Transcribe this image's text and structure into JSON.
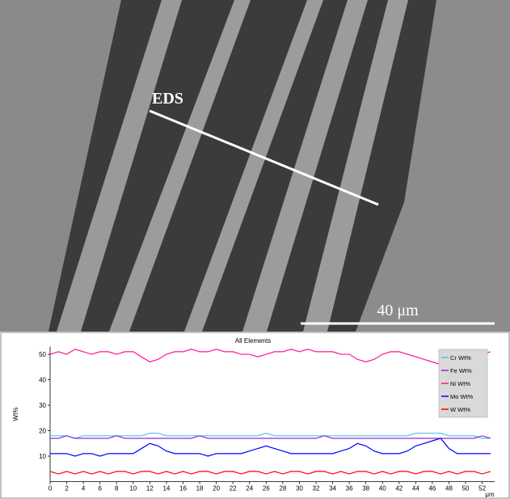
{
  "image": {
    "line_label": "EDS",
    "scale_bar": "40 μm"
  },
  "chart_data": {
    "type": "line",
    "title": "All Elements",
    "y_label": "Wt%",
    "x_label": "μm",
    "x": [
      0,
      1,
      2,
      3,
      4,
      5,
      6,
      7,
      8,
      9,
      10,
      11,
      12,
      13,
      14,
      15,
      16,
      17,
      18,
      19,
      20,
      21,
      22,
      23,
      24,
      25,
      26,
      27,
      28,
      29,
      30,
      31,
      32,
      33,
      34,
      35,
      36,
      37,
      38,
      39,
      40,
      41,
      42,
      43,
      44,
      45,
      46,
      47,
      48,
      49,
      50,
      51,
      52,
      53
    ],
    "xlim": [
      0,
      53.5
    ],
    "xticks": [
      0,
      2,
      4,
      6,
      8,
      10,
      12,
      14,
      16,
      18,
      20,
      22,
      24,
      26,
      28,
      30,
      32,
      34,
      36,
      38,
      40,
      42,
      44,
      46,
      48,
      50,
      52
    ],
    "ylim": [
      0,
      53
    ],
    "yticks": [
      10,
      20,
      30,
      40,
      50
    ],
    "legend": "upper right",
    "series": [
      {
        "name": "Cr Wt%",
        "color": "#4fc3e8",
        "values": [
          18,
          18,
          18,
          17,
          18,
          18,
          18,
          18,
          18,
          18,
          18,
          18,
          19,
          19,
          18,
          18,
          18,
          18,
          18,
          18,
          18,
          18,
          18,
          18,
          18,
          18,
          19,
          18,
          18,
          18,
          18,
          18,
          18,
          18,
          18,
          18,
          18,
          18,
          18,
          18,
          18,
          18,
          18,
          18,
          19,
          19,
          19,
          19,
          18,
          18,
          18,
          18,
          17,
          17
        ]
      },
      {
        "name": "Fe Wt%",
        "color": "#8a2be2",
        "values": [
          17,
          17,
          18,
          17,
          17,
          17,
          17,
          17,
          18,
          17,
          17,
          17,
          17,
          17,
          17,
          17,
          17,
          17,
          18,
          17,
          17,
          17,
          17,
          17,
          17,
          17,
          17,
          17,
          17,
          17,
          17,
          17,
          17,
          18,
          17,
          17,
          17,
          17,
          17,
          17,
          17,
          17,
          17,
          17,
          17,
          17,
          17,
          17,
          17,
          17,
          17,
          17,
          18,
          17
        ]
      },
      {
        "name": "Ni Wt%",
        "color": "#ff1493",
        "values": [
          50,
          51,
          50,
          52,
          51,
          50,
          51,
          51,
          50,
          51,
          51,
          49,
          47,
          48,
          50,
          51,
          51,
          52,
          51,
          51,
          52,
          51,
          51,
          50,
          50,
          49,
          50,
          51,
          51,
          52,
          51,
          52,
          51,
          51,
          51,
          50,
          50,
          48,
          47,
          48,
          50,
          51,
          51,
          50,
          49,
          48,
          47,
          46,
          47,
          49,
          50,
          51,
          50,
          51
        ]
      },
      {
        "name": "Mo Wt%",
        "color": "#0000ff",
        "values": [
          11,
          11,
          11,
          10,
          11,
          11,
          10,
          11,
          11,
          11,
          11,
          13,
          15,
          14,
          12,
          11,
          11,
          11,
          11,
          10,
          11,
          11,
          11,
          11,
          12,
          13,
          14,
          13,
          12,
          11,
          11,
          11,
          11,
          11,
          11,
          12,
          13,
          15,
          14,
          12,
          11,
          11,
          11,
          12,
          14,
          15,
          16,
          17,
          13,
          11,
          11,
          11,
          11,
          11
        ]
      },
      {
        "name": "W Wt%",
        "color": "#ff0000",
        "values": [
          4,
          3,
          4,
          3,
          4,
          3,
          4,
          3,
          4,
          4,
          3,
          4,
          4,
          3,
          4,
          3,
          4,
          3,
          4,
          4,
          3,
          4,
          4,
          3,
          4,
          4,
          3,
          4,
          3,
          4,
          4,
          3,
          4,
          4,
          3,
          4,
          3,
          4,
          4,
          3,
          4,
          3,
          4,
          4,
          3,
          4,
          4,
          3,
          4,
          3,
          4,
          4,
          3,
          4
        ]
      }
    ]
  }
}
